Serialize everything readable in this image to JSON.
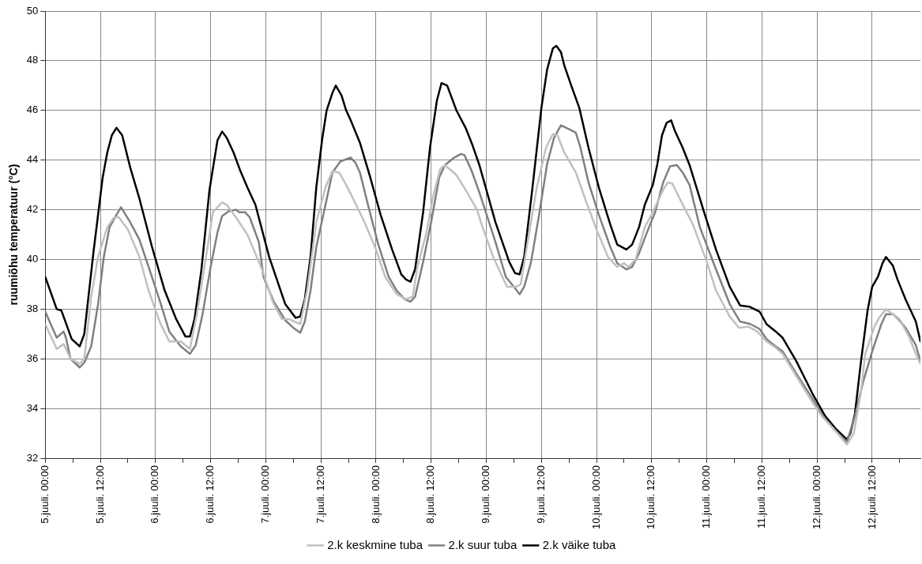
{
  "chart_data": {
    "type": "line",
    "ylabel": "ruumiõhu temperatuur (°C)",
    "xlim": [
      "--07-05T00:00",
      "--07-12T22:30"
    ],
    "ylim": [
      32,
      50
    ],
    "yticks": [
      32,
      34,
      36,
      38,
      40,
      42,
      44,
      46,
      48,
      50
    ],
    "xticks": [
      {
        "value": "--07-05T00:00",
        "label": "5.juuli. 00:00"
      },
      {
        "value": "--07-05T06:00",
        "label": null
      },
      {
        "value": "--07-05T12:00",
        "label": "5.juuli. 12:00"
      },
      {
        "value": "--07-05T18:00",
        "label": null
      },
      {
        "value": "--07-06T00:00",
        "label": "6.juuli. 00:00"
      },
      {
        "value": "--07-06T06:00",
        "label": null
      },
      {
        "value": "--07-06T12:00",
        "label": "6.juuli. 12:00"
      },
      {
        "value": "--07-06T18:00",
        "label": null
      },
      {
        "value": "--07-07T00:00",
        "label": "7.juuli. 00:00"
      },
      {
        "value": "--07-07T06:00",
        "label": null
      },
      {
        "value": "--07-07T12:00",
        "label": "7.juuli. 12:00"
      },
      {
        "value": "--07-07T18:00",
        "label": null
      },
      {
        "value": "--07-08T00:00",
        "label": "8.juuli. 00:00"
      },
      {
        "value": "--07-08T06:00",
        "label": null
      },
      {
        "value": "--07-08T12:00",
        "label": "8.juuli. 12:00"
      },
      {
        "value": "--07-08T18:00",
        "label": null
      },
      {
        "value": "--07-09T00:00",
        "label": "9.juuli. 00:00"
      },
      {
        "value": "--07-09T06:00",
        "label": null
      },
      {
        "value": "--07-09T12:00",
        "label": "9.juuli. 12:00"
      },
      {
        "value": "--07-09T18:00",
        "label": null
      },
      {
        "value": "--07-10T00:00",
        "label": "10.juuli. 00:00"
      },
      {
        "value": "--07-10T06:00",
        "label": null
      },
      {
        "value": "--07-10T12:00",
        "label": "10.juuli. 12:00"
      },
      {
        "value": "--07-10T18:00",
        "label": null
      },
      {
        "value": "--07-11T00:00",
        "label": "11.juuli. 00:00"
      },
      {
        "value": "--07-11T06:00",
        "label": null
      },
      {
        "value": "--07-11T12:00",
        "label": "11.juuli. 12:00"
      },
      {
        "value": "--07-11T18:00",
        "label": null
      },
      {
        "value": "--07-12T00:00",
        "label": "12.juuli. 00:00"
      },
      {
        "value": "--07-12T06:00",
        "label": null
      },
      {
        "value": "--07-12T12:00",
        "label": "12.juuli. 12:00"
      },
      {
        "value": "--07-12T18:00",
        "label": null
      }
    ],
    "grid": true,
    "legend": "bottom",
    "marker": "none",
    "line_style": "solid",
    "series": [
      {
        "name": "2.k keskmine tuba",
        "color": "#c0c0c0",
        "x": [
          "--07-05T00:00",
          "--07-05T02:30",
          "--07-05T04:00",
          "--07-05T05:30",
          "--07-05T07:30",
          "--07-05T08:30",
          "--07-05T10:00",
          "--07-05T11:30",
          "--07-05T13:30",
          "--07-05T15:00",
          "--07-05T16:00",
          "--07-05T18:00",
          "--07-05T20:30",
          "--07-05T22:30",
          "--07-06T01:00",
          "--07-06T03:00",
          "--07-06T05:30",
          "--07-06T07:30",
          "--07-06T09:00",
          "--07-06T11:00",
          "--07-06T12:30",
          "--07-06T14:30",
          "--07-06T15:30",
          "--07-06T17:30",
          "--07-06T20:00",
          "--07-06T22:30",
          "--07-06T23:30",
          "--07-07T01:30",
          "--07-07T03:30",
          "--07-07T05:00",
          "--07-07T07:30",
          "--07-07T09:00",
          "--07-07T11:00",
          "--07-07T13:00",
          "--07-07T14:30",
          "--07-07T16:00",
          "--07-07T17:30",
          "--07-07T19:00",
          "--07-07T21:30",
          "--07-08T00:00",
          "--07-08T02:00",
          "--07-08T04:30",
          "--07-08T06:30",
          "--07-08T08:00",
          "--07-08T09:00",
          "--07-08T11:00",
          "--07-08T12:30",
          "--07-08T14:00",
          "--07-08T15:00",
          "--07-08T17:30",
          "--07-08T19:30",
          "--07-08T22:00",
          "--07-08T23:00",
          "--07-09T01:30",
          "--07-09T04:30",
          "--07-09T06:30",
          "--07-09T07:30",
          "--07-09T09:00",
          "--07-09T11:00",
          "--07-09T13:00",
          "--07-09T14:30",
          "--07-09T15:30",
          "--07-09T17:00",
          "--07-09T19:30",
          "--07-09T21:30",
          "--07-10T00:00",
          "--07-10T02:30",
          "--07-10T04:30",
          "--07-10T06:00",
          "--07-10T07:00",
          "--07-10T08:30",
          "--07-10T10:30",
          "--07-10T12:30",
          "--07-10T14:30",
          "--07-10T15:30",
          "--07-10T16:30",
          "--07-10T18:30",
          "--07-10T21:00",
          "--07-11T00:00",
          "--07-11T02:00",
          "--07-11T05:00",
          "--07-11T07:00",
          "--07-11T09:00",
          "--07-11T11:00",
          "--07-11T13:00",
          "--07-11T15:00",
          "--07-11T16:30",
          "--07-11T19:30",
          "--07-11T23:00",
          "--07-12T01:00",
          "--07-12T04:00",
          "--07-12T06:30",
          "--07-12T08:00",
          "--07-12T09:30",
          "--07-12T10:30",
          "--07-12T12:30",
          "--07-12T13:30",
          "--07-12T15:00",
          "--07-12T16:30",
          "--07-12T18:30",
          "--07-12T20:00",
          "--07-12T21:30",
          "--07-12T22:30"
        ],
        "values": [
          37.4,
          36.4,
          36.6,
          36,
          35.8,
          36,
          38.5,
          40.1,
          41.3,
          41.7,
          41.7,
          41.2,
          40.1,
          38.75,
          37.45,
          36.7,
          36.7,
          36.4,
          37.8,
          40.1,
          41.9,
          42.3,
          42.2,
          41.7,
          41,
          39.9,
          39.45,
          38.3,
          37.6,
          37.6,
          37.4,
          38.75,
          41.5,
          42.9,
          43.55,
          43.5,
          43,
          42.45,
          41.5,
          40.4,
          39.3,
          38.6,
          38.4,
          38.5,
          39.7,
          41.1,
          42.6,
          43.65,
          43.8,
          43.4,
          42.8,
          42,
          41.4,
          40.1,
          38.9,
          38.9,
          39,
          40.7,
          42.9,
          44.5,
          45.05,
          45,
          44.3,
          43.5,
          42.45,
          41.2,
          40.1,
          39.7,
          39.85,
          39.7,
          40,
          41.3,
          42,
          42.8,
          43.1,
          43.05,
          42.3,
          41.4,
          39.9,
          38.75,
          37.7,
          37.25,
          37.3,
          37.1,
          36.7,
          36.45,
          36.2,
          35.3,
          34.25,
          33.7,
          33.1,
          32.55,
          33,
          34.6,
          36.2,
          37.3,
          37.65,
          38,
          37.8,
          37.4,
          36.9,
          36.2,
          35.8
        ]
      },
      {
        "name": "2.k suur tuba",
        "color": "#808080",
        "x": [
          "--07-05T00:00",
          "--07-05T02:30",
          "--07-05T04:00",
          "--07-05T04:30",
          "--07-05T05:30",
          "--07-05T07:30",
          "--07-05T08:30",
          "--07-05T10:00",
          "--07-05T11:30",
          "--07-05T12:45",
          "--07-05T14:00",
          "--07-05T15:30",
          "--07-05T16:30",
          "--07-05T18:30",
          "--07-05T20:30",
          "--07-05T22:30",
          "--07-06T01:00",
          "--07-06T03:00",
          "--07-06T05:30",
          "--07-06T07:30",
          "--07-06T08:45",
          "--07-06T10:15",
          "--07-06T12:00",
          "--07-06T13:30",
          "--07-06T14:30",
          "--07-06T16:00",
          "--07-06T17:30",
          "--07-06T18:15",
          "--07-06T19:30",
          "--07-06T20:30",
          "--07-06T22:30",
          "--07-06T23:30",
          "--07-07T01:45",
          "--07-07T04:15",
          "--07-07T06:00",
          "--07-07T07:30",
          "--07-07T08:30",
          "--07-07T09:45",
          "--07-07T11:00",
          "--07-07T13:00",
          "--07-07T14:30",
          "--07-07T16:15",
          "--07-07T18:30",
          "--07-07T19:30",
          "--07-07T20:30",
          "--07-07T22:15",
          "--07-08T00:30",
          "--07-08T02:45",
          "--07-08T04:30",
          "--07-08T06:15",
          "--07-08T07:30",
          "--07-08T08:30",
          "--07-08T10:15",
          "--07-08T12:00",
          "--07-08T13:45",
          "--07-08T15:00",
          "--07-08T17:00",
          "--07-08T18:30",
          "--07-08T19:15",
          "--07-08T20:45",
          "--07-08T22:30",
          "--07-09T02:00",
          "--07-09T04:15",
          "--07-09T06:00",
          "--07-09T07:15",
          "--07-09T08:15",
          "--07-09T09:45",
          "--07-09T11:30",
          "--07-09T13:15",
          "--07-09T14:45",
          "--07-09T16:15",
          "--07-09T18:30",
          "--07-09T19:30",
          "--07-09T20:30",
          "--07-09T22:15",
          "--07-10T00:30",
          "--07-10T03:00",
          "--07-10T04:30",
          "--07-10T06:30",
          "--07-10T07:45",
          "--07-10T09:15",
          "--07-10T11:00",
          "--07-10T12:45",
          "--07-10T14:30",
          "--07-10T16:00",
          "--07-10T17:30",
          "--07-10T18:45",
          "--07-10T20:15",
          "--07-10T22:30",
          "--07-11T02:00",
          "--07-11T05:00",
          "--07-11T07:15",
          "--07-11T09:30",
          "--07-11T11:30",
          "--07-11T13:00",
          "--07-11T15:00",
          "--07-11T16:30",
          "--07-11T19:30",
          "--07-11T23:00",
          "--07-12T01:15",
          "--07-12T04:00",
          "--07-12T06:30",
          "--07-12T08:15",
          "--07-12T10:00",
          "--07-12T12:00",
          "--07-12T14:00",
          "--07-12T15:00",
          "--07-12T16:30",
          "--07-12T17:45",
          "--07-12T19:15",
          "--07-12T21:30",
          "--07-12T22:30"
        ],
        "values": [
          37.9,
          36.85,
          37.1,
          36.85,
          36,
          35.65,
          35.85,
          36.5,
          38.2,
          40.1,
          41.3,
          41.8,
          42.1,
          41.5,
          40.8,
          39.7,
          38.3,
          37.1,
          36.5,
          36.2,
          36.55,
          37.8,
          39.7,
          41.1,
          41.75,
          41.95,
          42,
          41.9,
          41.9,
          41.7,
          40.7,
          39.3,
          38.3,
          37.55,
          37.25,
          37.05,
          37.5,
          38.75,
          40.5,
          42.2,
          43.5,
          43.95,
          44.1,
          43.9,
          43.5,
          42.2,
          40.6,
          39.3,
          38.75,
          38.4,
          38.3,
          38.5,
          39.9,
          41.5,
          43.3,
          43.8,
          44.1,
          44.25,
          44.2,
          43.6,
          42.7,
          40.7,
          39.3,
          38.9,
          38.6,
          38.9,
          39.9,
          41.8,
          43.85,
          44.9,
          45.4,
          45.2,
          45.1,
          44.5,
          43.1,
          41.8,
          40.5,
          39.85,
          39.6,
          39.7,
          40.25,
          41.1,
          41.9,
          43.1,
          43.75,
          43.8,
          43.5,
          43,
          41.3,
          39.6,
          38.2,
          37.5,
          37.4,
          37.2,
          36.8,
          36.5,
          36.3,
          35.4,
          34.4,
          33.7,
          33.1,
          32.65,
          33.7,
          35.05,
          36.3,
          37.4,
          37.8,
          37.8,
          37.6,
          37.25,
          36.55,
          35.9
        ]
      },
      {
        "name": "2.k väike tuba",
        "color": "#000000",
        "x": [
          "--07-05T00:00",
          "--07-05T02:30",
          "--07-05T03:30",
          "--07-05T05:45",
          "--07-05T07:30",
          "--07-05T08:30",
          "--07-05T10:30",
          "--07-05T12:30",
          "--07-05T13:30",
          "--07-05T14:30",
          "--07-05T15:30",
          "--07-05T16:45",
          "--07-05T18:30",
          "--07-05T20:30",
          "--07-05T23:15",
          "--07-06T02:00",
          "--07-06T04:30",
          "--07-06T06:30",
          "--07-06T07:30",
          "--07-06T08:30",
          "--07-06T10:00",
          "--07-06T11:45",
          "--07-06T13:30",
          "--07-06T14:30",
          "--07-06T15:30",
          "--07-06T17:00",
          "--07-06T18:30",
          "--07-06T20:00",
          "--07-06T21:45",
          "--07-07T00:45",
          "--07-07T04:15",
          "--07-07T06:30",
          "--07-07T07:30",
          "--07-07T08:30",
          "--07-07T09:45",
          "--07-07T11:00",
          "--07-07T12:15",
          "--07-07T13:15",
          "--07-07T14:30",
          "--07-07T15:15",
          "--07-07T16:30",
          "--07-07T17:30",
          "--07-07T18:30",
          "--07-07T20:30",
          "--07-07T22:45",
          "--07-08T01:00",
          "--07-08T03:30",
          "--07-08T05:30",
          "--07-08T06:30",
          "--07-08T07:30",
          "--07-08T08:30",
          "--07-08T10:15",
          "--07-08T11:45",
          "--07-08T13:15",
          "--07-08T14:15",
          "--07-08T15:30",
          "--07-08T17:30",
          "--07-08T19:30",
          "--07-08T21:00",
          "--07-08T22:30",
          "--07-09T02:00",
          "--07-09T05:00",
          "--07-09T06:15",
          "--07-09T07:15",
          "--07-09T08:15",
          "--07-09T10:00",
          "--07-09T12:00",
          "--07-09T13:15",
          "--07-09T14:30",
          "--07-09T15:15",
          "--07-09T16:15",
          "--07-09T17:00",
          "--07-09T18:30",
          "--07-09T20:15",
          "--07-09T22:15",
          "--07-10T00:30",
          "--07-10T03:00",
          "--07-10T04:30",
          "--07-10T06:30",
          "--07-10T07:45",
          "--07-10T09:15",
          "--07-10T10:30",
          "--07-10T12:15",
          "--07-10T13:15",
          "--07-10T14:15",
          "--07-10T15:15",
          "--07-10T16:15",
          "--07-10T17:00",
          "--07-10T18:45",
          "--07-10T20:15",
          "--07-10T23:15",
          "--07-11T02:00",
          "--07-11T05:00",
          "--07-11T07:15",
          "--07-11T09:15",
          "--07-11T11:30",
          "--07-11T13:00",
          "--07-11T15:00",
          "--07-11T16:30",
          "--07-11T19:30",
          "--07-11T23:00",
          "--07-12T01:45",
          "--07-12T04:00",
          "--07-12T06:30",
          "--07-12T07:15",
          "--07-12T08:15",
          "--07-12T09:30",
          "--07-12T11:00",
          "--07-12T12:00",
          "--07-12T13:15",
          "--07-12T14:15",
          "--07-12T15:00",
          "--07-12T16:30",
          "--07-12T17:30",
          "--07-12T19:15",
          "--07-12T21:30",
          "--07-12T22:30"
        ],
        "values": [
          39.3,
          38,
          37.95,
          36.8,
          36.5,
          37,
          40.3,
          43.3,
          44.3,
          45,
          45.3,
          45,
          43.7,
          42.45,
          40.5,
          38.75,
          37.6,
          36.9,
          36.9,
          37.6,
          39.6,
          42.8,
          44.8,
          45.15,
          44.9,
          44.3,
          43.55,
          42.9,
          42.2,
          40.1,
          38.2,
          37.65,
          37.7,
          38.4,
          40.1,
          42.9,
          44.8,
          46,
          46.7,
          47,
          46.6,
          46,
          45.6,
          44.7,
          43.3,
          41.8,
          40.4,
          39.4,
          39.2,
          39.1,
          39.6,
          41.9,
          44.5,
          46.4,
          47.1,
          47,
          46,
          45.3,
          44.6,
          43.8,
          41.5,
          39.9,
          39.45,
          39.4,
          40.1,
          42.8,
          46.1,
          47.65,
          48.5,
          48.6,
          48.35,
          47.8,
          47,
          46.1,
          44.5,
          42.9,
          41.4,
          40.6,
          40.4,
          40.6,
          41.3,
          42.2,
          43,
          43.85,
          45,
          45.5,
          45.6,
          45.2,
          44.5,
          43.8,
          42,
          40.4,
          38.9,
          38.15,
          38.1,
          37.9,
          37.4,
          37.1,
          36.85,
          35.9,
          34.6,
          33.7,
          33.2,
          32.75,
          33,
          33.8,
          35.8,
          37.95,
          38.9,
          39.3,
          39.85,
          40.1,
          39.75,
          39.2,
          38.4,
          37.5,
          36.7
        ]
      }
    ]
  }
}
